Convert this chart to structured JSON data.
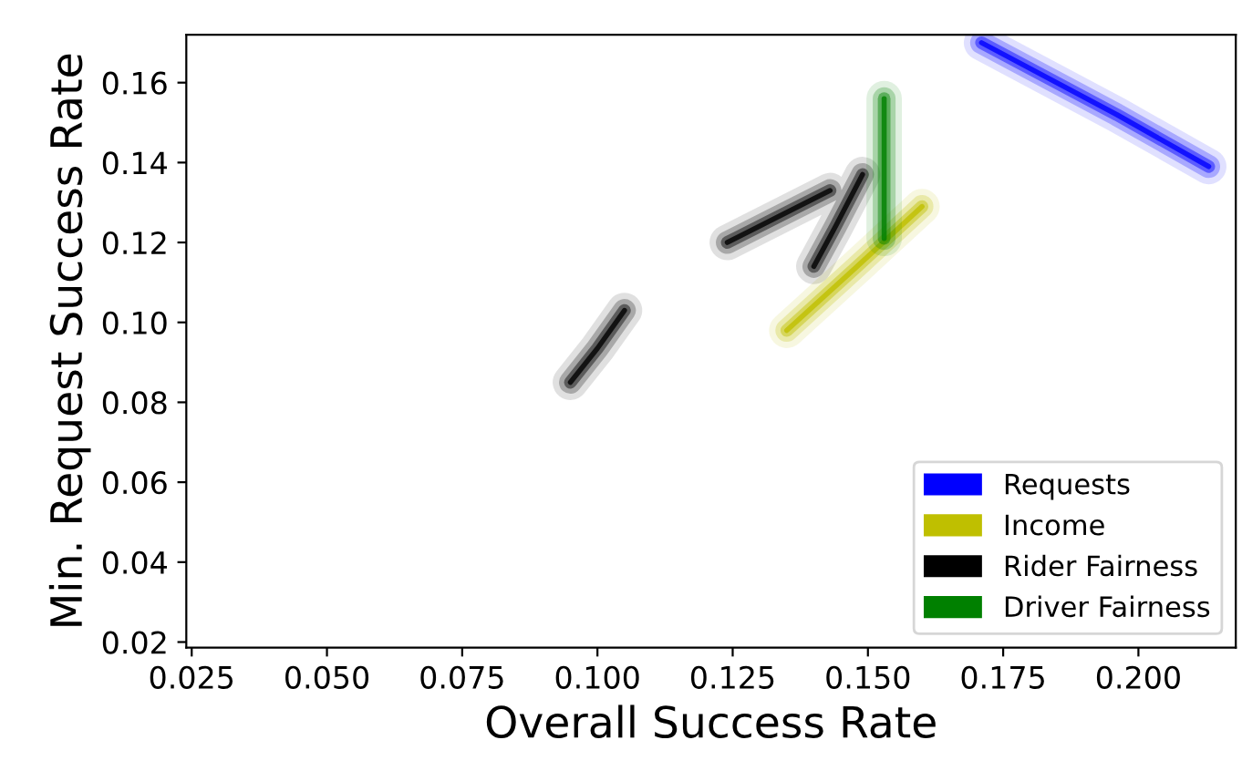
{
  "chart_data": {
    "type": "line",
    "xlabel": "Overall Success Rate",
    "ylabel": "Min. Request Success Rate",
    "xlim": [
      0.024,
      0.218
    ],
    "ylim": [
      0.0186,
      0.172
    ],
    "xticks": [
      {
        "value": 0.025,
        "label": "0.025"
      },
      {
        "value": 0.05,
        "label": "0.050"
      },
      {
        "value": 0.075,
        "label": "0.075"
      },
      {
        "value": 0.1,
        "label": "0.100"
      },
      {
        "value": 0.125,
        "label": "0.125"
      },
      {
        "value": 0.15,
        "label": "0.150"
      },
      {
        "value": 0.175,
        "label": "0.175"
      },
      {
        "value": 0.2,
        "label": "0.200"
      }
    ],
    "yticks": [
      {
        "value": 0.02,
        "label": "0.02"
      },
      {
        "value": 0.04,
        "label": "0.04"
      },
      {
        "value": 0.06,
        "label": "0.06"
      },
      {
        "value": 0.08,
        "label": "0.08"
      },
      {
        "value": 0.1,
        "label": "0.10"
      },
      {
        "value": 0.12,
        "label": "0.12"
      },
      {
        "value": 0.14,
        "label": "0.14"
      },
      {
        "value": 0.16,
        "label": "0.16"
      }
    ],
    "series": [
      {
        "name": "Requests",
        "color": "#0000ff",
        "x": [
          0.171,
          0.196,
          0.213
        ],
        "values": [
          0.17,
          0.152,
          0.139
        ]
      },
      {
        "name": "Income",
        "color": "#bfbf00",
        "x": [
          0.135,
          0.148,
          0.16
        ],
        "values": [
          0.098,
          0.114,
          0.129
        ]
      },
      {
        "name": "Rider Fairness",
        "color": "#000000",
        "x": [
          0.095,
          0.1,
          0.105,
          null,
          0.124,
          0.1335,
          0.143,
          null,
          0.14,
          0.144,
          0.149
        ],
        "values": [
          0.085,
          0.0935,
          0.103,
          null,
          0.12,
          0.1265,
          0.133,
          null,
          0.114,
          0.124,
          0.137
        ]
      },
      {
        "name": "Driver Fairness",
        "color": "#008000",
        "x": [
          0.153,
          0.153,
          0.153
        ],
        "values": [
          0.121,
          0.138,
          0.156
        ]
      }
    ],
    "grid": false,
    "legend": "bottom right",
    "line_style": "solid",
    "marker": "none"
  }
}
